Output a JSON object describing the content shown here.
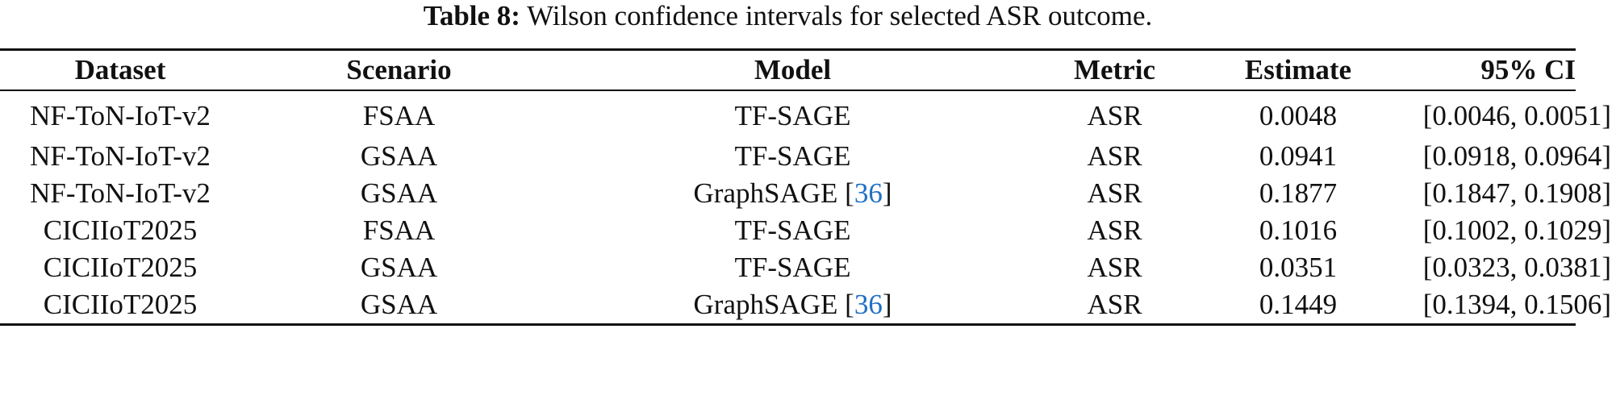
{
  "caption": {
    "label": "Table 8:",
    "text": "Wilson confidence intervals for selected ASR outcome."
  },
  "table": {
    "headers": [
      "Dataset",
      "Scenario",
      "Model",
      "Metric",
      "Estimate",
      "95% CI"
    ],
    "rows": [
      {
        "dataset": "NF-ToN-IoT-v2",
        "scenario": "FSAA",
        "model": "TF-SAGE",
        "ref": "",
        "metric": "ASR",
        "estimate": "0.0048",
        "ci": "[0.0046, 0.0051]"
      },
      {
        "dataset": "NF-ToN-IoT-v2",
        "scenario": "GSAA",
        "model": "TF-SAGE",
        "ref": "",
        "metric": "ASR",
        "estimate": "0.0941",
        "ci": "[0.0918, 0.0964]"
      },
      {
        "dataset": "NF-ToN-IoT-v2",
        "scenario": "GSAA",
        "model": "GraphSAGE",
        "ref": "36",
        "metric": "ASR",
        "estimate": "0.1877",
        "ci": "[0.1847, 0.1908]"
      },
      {
        "dataset": "CICIIoT2025",
        "scenario": "FSAA",
        "model": "TF-SAGE",
        "ref": "",
        "metric": "ASR",
        "estimate": "0.1016",
        "ci": "[0.1002, 0.1029]"
      },
      {
        "dataset": "CICIIoT2025",
        "scenario": "GSAA",
        "model": "TF-SAGE",
        "ref": "",
        "metric": "ASR",
        "estimate": "0.0351",
        "ci": "[0.0323, 0.0381]"
      },
      {
        "dataset": "CICIIoT2025",
        "scenario": "GSAA",
        "model": "GraphSAGE",
        "ref": "36",
        "metric": "ASR",
        "estimate": "0.1449",
        "ci": "[0.1394, 0.1506]"
      }
    ]
  },
  "colors": {
    "text": "#111111",
    "citation_link": "#1f6fc5"
  }
}
